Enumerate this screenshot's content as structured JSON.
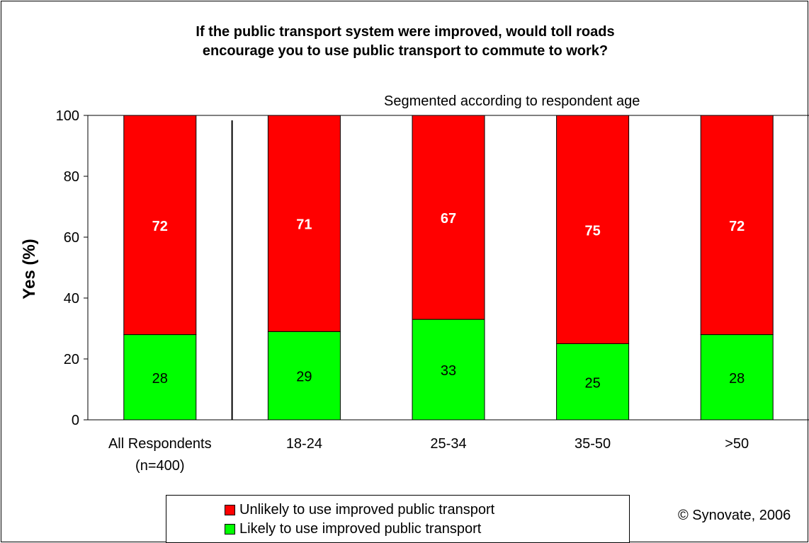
{
  "chart_data": {
    "type": "bar",
    "stacked": true,
    "title_line1": "If the public transport system were improved, would toll roads",
    "title_line2": "encourage you to use public transport to commute to work?",
    "subtitle": "Segmented according to respondent age",
    "ylabel": "Yes (%)",
    "xlabel": "",
    "ylim": [
      0,
      100
    ],
    "yticks": [
      "0",
      "20",
      "40",
      "60",
      "80",
      "100"
    ],
    "categories": [
      [
        "All Respondents",
        "(n=400)"
      ],
      [
        "18-24"
      ],
      [
        "25-34"
      ],
      [
        "35-50"
      ],
      [
        ">50"
      ]
    ],
    "series": [
      {
        "name": "Likely to use improved public transport",
        "color": "#00ff00",
        "values": [
          28,
          29,
          33,
          25,
          28
        ],
        "label_color": "#000000"
      },
      {
        "name": "Unlikely to use improved public transport",
        "color": "#ff0000",
        "values": [
          72,
          71,
          67,
          75,
          72
        ],
        "label_color": "#ffffff"
      }
    ],
    "grid": false,
    "legend_position": "bottom"
  },
  "credit": "© Synovate, 2006"
}
